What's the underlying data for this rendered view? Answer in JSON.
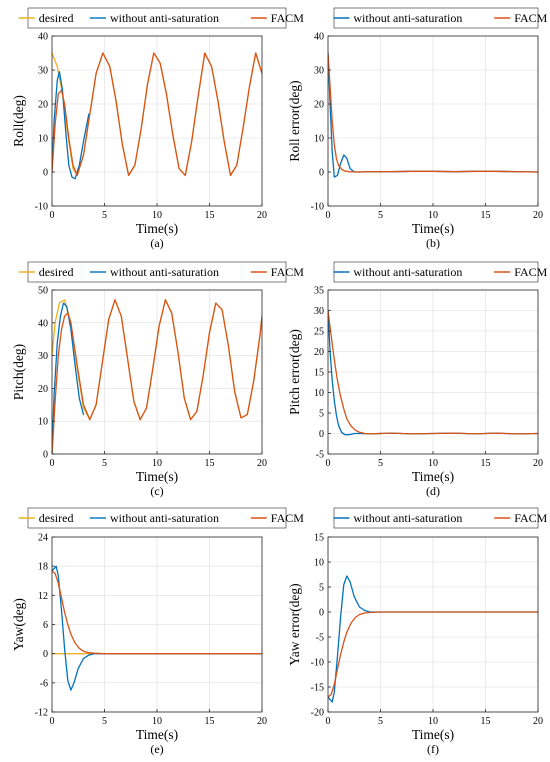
{
  "colors": {
    "desired": "#EDB120",
    "without": "#0072BD",
    "facm": "#D95319"
  },
  "chart_data": [
    {
      "id": "a",
      "type": "line",
      "panel_label": "(a)",
      "xlabel": "Time(s)",
      "ylabel": "Roll(deg)",
      "xlim": [
        0,
        20
      ],
      "ylim": [
        -10,
        40
      ],
      "xticks": [
        "0",
        "5",
        "10",
        "15",
        "20"
      ],
      "yticks": [
        "-10",
        "0",
        "10",
        "20",
        "30",
        "40"
      ],
      "grid": true,
      "legend_position": "top, outside",
      "legend": [
        "desired",
        "without anti-saturation",
        "FACM"
      ],
      "series": [
        {
          "name": "desired",
          "color_key": "desired",
          "x": [
            0,
            0.5,
            1,
            1.5,
            2.0,
            2.4,
            3,
            3.6,
            4.2,
            4.85,
            5.5,
            6.1,
            6.7,
            7.3,
            7.9,
            8.5,
            9.1,
            9.7,
            10.3,
            10.9,
            11.5,
            12.1,
            12.7,
            13.3,
            13.9,
            14.55,
            15.2,
            15.8,
            16.4,
            17.0,
            17.6,
            18.2,
            18.8,
            19.4,
            20
          ],
          "y": [
            35.0,
            31.0,
            23.0,
            11.0,
            1.0,
            -1.0,
            5.0,
            17.0,
            29.0,
            35.0,
            31.0,
            21.0,
            8.0,
            -1.0,
            2.0,
            13.0,
            26.0,
            35.0,
            32.0,
            23.0,
            11.0,
            1.0,
            -1.0,
            9.0,
            22.0,
            35.0,
            31.0,
            21.0,
            9.0,
            -1.0,
            2.0,
            13.0,
            25.0,
            35.0,
            29.0
          ]
        },
        {
          "name": "without anti-saturation",
          "color_key": "without",
          "x": [
            0,
            0.2,
            0.5,
            0.7,
            1.0,
            1.3,
            1.6,
            1.9,
            2.2,
            2.6,
            3.0,
            3.5
          ],
          "y": [
            0,
            15.0,
            27.0,
            29.5,
            24.0,
            12.0,
            2.0,
            -1.5,
            -2.0,
            2.0,
            9.0,
            17.0
          ]
        },
        {
          "name": "FACM",
          "color_key": "facm",
          "x": [
            0,
            0.3,
            0.6,
            0.9,
            1.2,
            1.6,
            2.0,
            2.4,
            3,
            3.6,
            4.2,
            4.85,
            5.5,
            6.1,
            6.7,
            7.3,
            7.9,
            8.5,
            9.1,
            9.7,
            10.3,
            10.9,
            11.5,
            12.1,
            12.7,
            13.3,
            13.9,
            14.55,
            15.2,
            15.8,
            16.4,
            17.0,
            17.6,
            18.2,
            18.8,
            19.4,
            20
          ],
          "y": [
            0,
            14.0,
            23.0,
            24.0,
            20.0,
            10.0,
            2.0,
            -1.0,
            5.0,
            17.0,
            29.0,
            35.0,
            31.0,
            21.0,
            8.0,
            -1.0,
            2.0,
            13.0,
            26.0,
            35.0,
            32.0,
            23.0,
            11.0,
            1.0,
            -1.0,
            9.0,
            22.0,
            35.0,
            31.0,
            21.0,
            9.0,
            -1.0,
            2.0,
            13.0,
            25.0,
            35.0,
            29.0
          ]
        }
      ]
    },
    {
      "id": "b",
      "type": "line",
      "panel_label": "(b)",
      "xlabel": "Time(s)",
      "ylabel": "Roll error(deg)",
      "xlim": [
        0,
        20
      ],
      "ylim": [
        -10,
        40
      ],
      "xticks": [
        "0",
        "5",
        "10",
        "15",
        "20"
      ],
      "yticks": [
        "-10",
        "0",
        "10",
        "20",
        "30",
        "40"
      ],
      "grid": true,
      "legend_position": "top, outside",
      "legend": [
        "without anti-saturation",
        "FACM"
      ],
      "series": [
        {
          "name": "without anti-saturation",
          "color_key": "without",
          "x": [
            0,
            0.2,
            0.4,
            0.6,
            0.9,
            1.2,
            1.5,
            1.8,
            2.1,
            2.5,
            3,
            4,
            6,
            8,
            10,
            12,
            14,
            16,
            18,
            20
          ],
          "y": [
            35.0,
            20.0,
            6.0,
            -1.5,
            -1.0,
            2.5,
            5.0,
            4.0,
            1.0,
            0.0,
            0.0,
            0.1,
            0.1,
            0.2,
            0.2,
            0.1,
            0.2,
            0.2,
            0.1,
            0.0
          ]
        },
        {
          "name": "FACM",
          "color_key": "facm",
          "x": [
            0,
            0.2,
            0.4,
            0.6,
            0.8,
            1.0,
            1.3,
            1.6,
            2,
            3,
            4,
            6,
            8,
            10,
            12,
            14,
            16,
            18,
            20
          ],
          "y": [
            35.0,
            25.0,
            15.0,
            8.0,
            4.0,
            2.0,
            0.8,
            0.3,
            0.1,
            0.0,
            0.1,
            0.1,
            0.2,
            0.2,
            0.1,
            0.2,
            0.2,
            0.1,
            0.0
          ]
        }
      ]
    },
    {
      "id": "c",
      "type": "line",
      "panel_label": "(c)",
      "xlabel": "Time(s)",
      "ylabel": "Pitch(deg)",
      "xlim": [
        0,
        20
      ],
      "ylim": [
        0,
        50
      ],
      "xticks": [
        "0",
        "5",
        "10",
        "15",
        "20"
      ],
      "yticks": [
        "0",
        "10",
        "20",
        "30",
        "40",
        "50"
      ],
      "grid": true,
      "legend_position": "top, outside",
      "legend": [
        "desired",
        "without anti-saturation",
        "FACM"
      ],
      "series": [
        {
          "name": "desired",
          "color_key": "desired",
          "x": [
            0,
            0.3,
            0.7,
            1.2,
            1.8,
            2.4,
            3.0,
            3.6,
            4.2,
            4.8,
            5.4,
            6.0,
            6.6,
            7.2,
            7.8,
            8.4,
            9.0,
            9.6,
            10.2,
            10.8,
            11.4,
            12.0,
            12.6,
            13.2,
            13.8,
            14.4,
            15.0,
            15.6,
            16.2,
            16.8,
            17.4,
            18.0,
            18.6,
            19.2,
            19.8,
            20
          ],
          "y": [
            30.0,
            40.0,
            46.0,
            47.0,
            40.0,
            26.0,
            14.0,
            10.5,
            15.0,
            28.0,
            41.0,
            47.0,
            42.0,
            29.0,
            16.0,
            10.5,
            14.0,
            26.0,
            39.0,
            47.0,
            43.0,
            31.0,
            17.0,
            10.5,
            13.0,
            24.0,
            37.0,
            46.0,
            44.0,
            33.0,
            19.0,
            11.0,
            12.0,
            22.0,
            36.0,
            42.0
          ]
        },
        {
          "name": "without anti-saturation",
          "color_key": "without",
          "x": [
            0,
            0.2,
            0.5,
            0.8,
            1.1,
            1.4,
            1.8,
            2.2,
            2.6,
            3.0
          ],
          "y": [
            0,
            18.0,
            34.0,
            42.0,
            46.0,
            45.0,
            38.0,
            27.0,
            17.0,
            12.0
          ]
        },
        {
          "name": "FACM",
          "color_key": "facm",
          "x": [
            0,
            0.3,
            0.6,
            0.9,
            1.2,
            1.5,
            1.8,
            2.4,
            3.0,
            3.6,
            4.2,
            4.8,
            5.4,
            6.0,
            6.6,
            7.2,
            7.8,
            8.4,
            9.0,
            9.6,
            10.2,
            10.8,
            11.4,
            12.0,
            12.6,
            13.2,
            13.8,
            14.4,
            15.0,
            15.6,
            16.2,
            16.8,
            17.4,
            18.0,
            18.6,
            19.2,
            19.8,
            20
          ],
          "y": [
            0,
            16.0,
            30.0,
            38.0,
            42.0,
            43.0,
            40.0,
            27.0,
            15.0,
            10.5,
            15.0,
            28.0,
            41.0,
            47.0,
            42.0,
            29.0,
            16.0,
            10.5,
            14.0,
            26.0,
            39.0,
            47.0,
            43.0,
            31.0,
            17.0,
            10.5,
            13.0,
            24.0,
            37.0,
            46.0,
            44.0,
            33.0,
            19.0,
            11.0,
            12.0,
            22.0,
            36.0,
            42.0
          ]
        }
      ]
    },
    {
      "id": "d",
      "type": "line",
      "panel_label": "(d)",
      "xlabel": "Time(s)",
      "ylabel": "Pitch error(deg)",
      "xlim": [
        0,
        20
      ],
      "ylim": [
        -5,
        35
      ],
      "xticks": [
        "0",
        "5",
        "10",
        "15",
        "20"
      ],
      "yticks": [
        "-5",
        "0",
        "5",
        "10",
        "15",
        "20",
        "25",
        "30",
        "35"
      ],
      "grid": true,
      "legend_position": "top, outside",
      "legend": [
        "without anti-saturation",
        "FACM"
      ],
      "series": [
        {
          "name": "without anti-saturation",
          "color_key": "without",
          "x": [
            0,
            0.2,
            0.4,
            0.6,
            0.8,
            1.0,
            1.3,
            1.6,
            2.0,
            2.5,
            3,
            4,
            6,
            8,
            10,
            12,
            14,
            16,
            18,
            20
          ],
          "y": [
            30.0,
            20.0,
            13.0,
            8.0,
            4.5,
            2.0,
            0.3,
            -0.3,
            -0.3,
            0.0,
            0.0,
            -0.1,
            0.1,
            -0.1,
            0.0,
            0.1,
            -0.1,
            0.1,
            -0.1,
            0.0
          ]
        },
        {
          "name": "FACM",
          "color_key": "facm",
          "x": [
            0,
            0.3,
            0.6,
            0.9,
            1.2,
            1.5,
            1.8,
            2.2,
            2.6,
            3.0,
            3.5,
            4,
            6,
            8,
            10,
            12,
            14,
            16,
            18,
            20
          ],
          "y": [
            30.0,
            24.0,
            18.0,
            13.0,
            9.0,
            6.0,
            3.5,
            1.8,
            0.8,
            0.3,
            0.0,
            -0.1,
            0.1,
            -0.1,
            0.0,
            0.1,
            -0.1,
            0.1,
            -0.1,
            0.0
          ]
        }
      ]
    },
    {
      "id": "e",
      "type": "line",
      "panel_label": "(e)",
      "xlabel": "Time(s)",
      "ylabel": "Yaw(deg)",
      "xlim": [
        0,
        20
      ],
      "ylim": [
        -12,
        24
      ],
      "xticks": [
        "0",
        "5",
        "10",
        "15",
        "20"
      ],
      "yticks": [
        "-12",
        "-6",
        "0",
        "6",
        "12",
        "18",
        "24"
      ],
      "grid": true,
      "legend_position": "top, outside",
      "legend": [
        "desired",
        "without anti-saturation",
        "FACM"
      ],
      "series": [
        {
          "name": "desired",
          "color_key": "desired",
          "x": [
            0,
            20
          ],
          "y": [
            0,
            0
          ]
        },
        {
          "name": "without anti-saturation",
          "color_key": "without",
          "x": [
            0,
            0.2,
            0.4,
            0.6,
            0.9,
            1.2,
            1.5,
            1.8,
            2.1,
            2.5,
            3.0,
            3.5,
            4.0,
            5,
            10,
            15,
            20
          ],
          "y": [
            17.0,
            17.5,
            18.0,
            16.0,
            9.0,
            1.0,
            -5.5,
            -7.5,
            -6.0,
            -3.0,
            -1.0,
            -0.3,
            0.0,
            0.0,
            0.0,
            0.0,
            0.0
          ]
        },
        {
          "name": "FACM",
          "color_key": "facm",
          "x": [
            0,
            0.3,
            0.6,
            0.9,
            1.2,
            1.5,
            1.8,
            2.2,
            2.6,
            3.0,
            3.5,
            4.0,
            5,
            10,
            15,
            20
          ],
          "y": [
            17.0,
            16.5,
            14.5,
            11.5,
            8.5,
            6.0,
            4.0,
            2.2,
            1.1,
            0.5,
            0.2,
            0.1,
            0.0,
            0.0,
            0.0,
            0.0
          ]
        }
      ]
    },
    {
      "id": "f",
      "type": "line",
      "panel_label": "(f)",
      "xlabel": "Time(s)",
      "ylabel": "Yaw error(deg)",
      "xlim": [
        0,
        20
      ],
      "ylim": [
        -20,
        15
      ],
      "xticks": [
        "0",
        "5",
        "10",
        "15",
        "20"
      ],
      "yticks": [
        "-20",
        "-15",
        "-10",
        "-5",
        "0",
        "5",
        "10",
        "15"
      ],
      "grid": true,
      "legend_position": "top, outside",
      "legend": [
        "without anti-saturation",
        "FACM"
      ],
      "series": [
        {
          "name": "without anti-saturation",
          "color_key": "without",
          "x": [
            0,
            0.2,
            0.4,
            0.6,
            0.9,
            1.2,
            1.5,
            1.8,
            2.1,
            2.5,
            3.0,
            3.5,
            4.0,
            5,
            10,
            15,
            20
          ],
          "y": [
            -17.0,
            -17.5,
            -18.0,
            -16.0,
            -9.0,
            -1.0,
            5.5,
            7.2,
            6.0,
            3.0,
            1.0,
            0.3,
            0.0,
            0.0,
            0.0,
            0.0,
            0.0
          ]
        },
        {
          "name": "FACM",
          "color_key": "facm",
          "x": [
            0,
            0.3,
            0.6,
            0.9,
            1.2,
            1.5,
            1.8,
            2.2,
            2.6,
            3.0,
            3.5,
            4.0,
            5,
            10,
            15,
            20
          ],
          "y": [
            -17.0,
            -16.5,
            -14.5,
            -11.5,
            -8.5,
            -6.0,
            -4.0,
            -2.2,
            -1.1,
            -0.5,
            -0.2,
            -0.1,
            0.0,
            0.0,
            0.0,
            0.0
          ]
        }
      ]
    }
  ]
}
